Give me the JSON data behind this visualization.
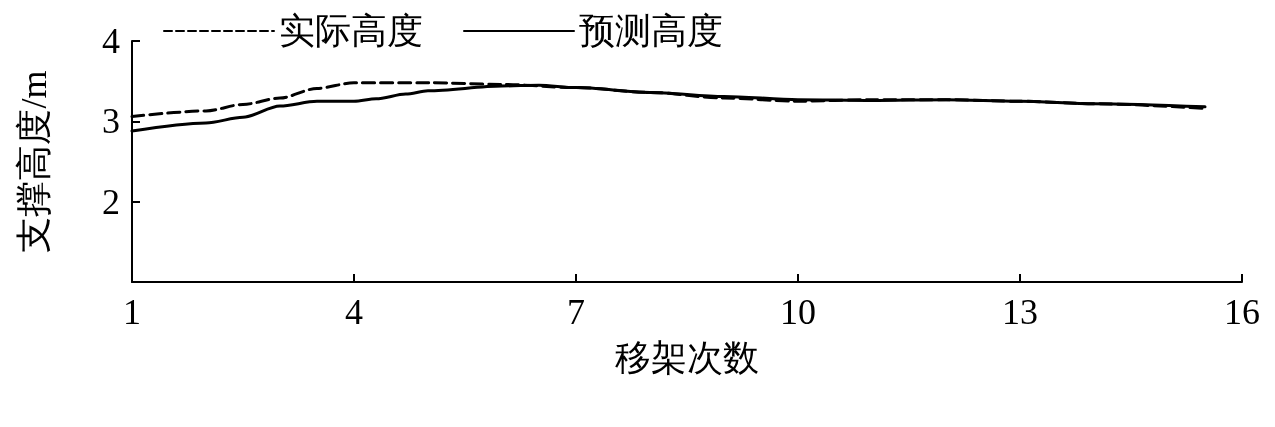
{
  "chart_data": {
    "type": "line",
    "xlabel": "移架次数",
    "ylabel": "支撑高度/m",
    "xlim": [
      1,
      16
    ],
    "xticks": [
      1,
      4,
      7,
      10,
      13,
      16
    ],
    "ylim": [
      1,
      4
    ],
    "yticks": [
      2,
      3,
      4
    ],
    "legend": "top",
    "grid": false,
    "marker": "none",
    "series": [
      {
        "name": "实际高度",
        "color": "#000000",
        "line_style": "dashed",
        "x": [
          1,
          2,
          2.5,
          3,
          3.5,
          4,
          5,
          6,
          7,
          8,
          9,
          10,
          11,
          12,
          13,
          14,
          15.5
        ],
        "values": [
          3.06,
          3.13,
          3.21,
          3.29,
          3.41,
          3.48,
          3.48,
          3.46,
          3.42,
          3.36,
          3.29,
          3.25,
          3.27,
          3.27,
          3.25,
          3.22,
          3.16
        ]
      },
      {
        "name": "预测高度",
        "color": "#000000",
        "line_style": "solid",
        "x": [
          1,
          2,
          2.5,
          3,
          3.5,
          4,
          4.3,
          4.7,
          5,
          6,
          6.5,
          7,
          8,
          9,
          10,
          11,
          12,
          13,
          14,
          15.5
        ],
        "values": [
          2.88,
          2.98,
          3.05,
          3.19,
          3.25,
          3.25,
          3.28,
          3.34,
          3.38,
          3.44,
          3.45,
          3.42,
          3.36,
          3.31,
          3.27,
          3.26,
          3.27,
          3.25,
          3.22,
          3.18
        ]
      }
    ]
  }
}
